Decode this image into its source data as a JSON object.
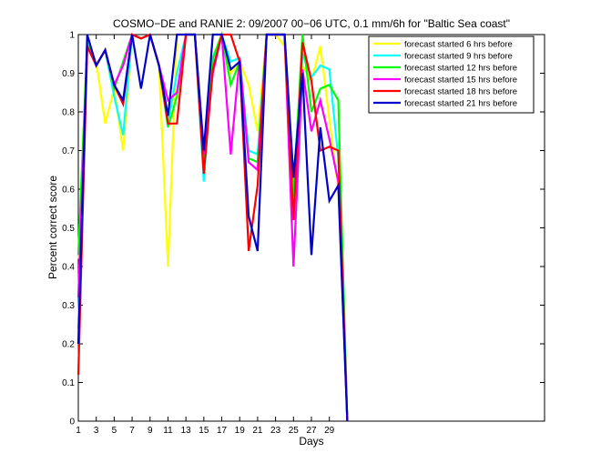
{
  "chart_data": {
    "type": "line",
    "title": "COSMO−DE and RANIE 2: 09/2007 00−06 UTC, 0.1 mm/6h for \"Baltic Sea coast\"",
    "xlabel": "Days",
    "ylabel": "Percent correct score",
    "xlim": [
      1,
      53
    ],
    "ylim": [
      0,
      1
    ],
    "xticks": [
      1,
      3,
      5,
      7,
      9,
      11,
      13,
      15,
      17,
      19,
      21,
      23,
      25,
      27,
      29
    ],
    "xtick_labels": [
      "1",
      "3",
      "5",
      "7",
      "9",
      "11",
      "13",
      "15",
      "17",
      "19",
      "21",
      "23",
      "25",
      "27",
      "29"
    ],
    "yticks": [
      0,
      0.1,
      0.2,
      0.3,
      0.4,
      0.5,
      0.6,
      0.7,
      0.8,
      0.9,
      1
    ],
    "ytick_labels": [
      "0",
      "0.1",
      "0.2",
      "0.3",
      "0.4",
      "0.5",
      "0.6",
      "0.7",
      "0.8",
      "0.9",
      "1"
    ],
    "grid": false,
    "legend_position": "top-right",
    "series": [
      {
        "name": "forecast started 6 hrs before",
        "color": "#ffff00",
        "points": [
          [
            1,
            0.42
          ],
          [
            2,
            0.97
          ],
          [
            3,
            0.93
          ],
          [
            4,
            0.77
          ],
          [
            5,
            0.86
          ],
          [
            6,
            0.7
          ],
          [
            7,
            1.0
          ],
          [
            8,
            0.99
          ],
          [
            9,
            1.0
          ],
          [
            10,
            0.92
          ],
          [
            11,
            0.4
          ],
          [
            12,
            1.0
          ],
          [
            13,
            1.0
          ],
          [
            14,
            1.0
          ],
          [
            15,
            0.67
          ],
          [
            16,
            1.0
          ],
          [
            17,
            1.0
          ],
          [
            18,
            0.9
          ],
          [
            19,
            0.93
          ],
          [
            20,
            0.87
          ],
          [
            21,
            0.75
          ],
          [
            22,
            1.0
          ],
          [
            23,
            1.0
          ],
          [
            24,
            0.97
          ],
          [
            25,
            0.52
          ],
          [
            26,
            0.92
          ],
          [
            27,
            0.88
          ],
          [
            28,
            0.97
          ],
          [
            29,
            0.78
          ],
          [
            30,
            0.6
          ],
          [
            31,
            0.0
          ]
        ]
      },
      {
        "name": "forecast started 9 hrs before",
        "color": "#00ffff",
        "points": [
          [
            1,
            0.24
          ],
          [
            2,
            0.97
          ],
          [
            3,
            0.92
          ],
          [
            4,
            0.96
          ],
          [
            5,
            0.84
          ],
          [
            6,
            0.74
          ],
          [
            7,
            1.0
          ],
          [
            8,
            0.99
          ],
          [
            9,
            1.0
          ],
          [
            10,
            0.92
          ],
          [
            11,
            0.77
          ],
          [
            12,
            0.9
          ],
          [
            13,
            1.0
          ],
          [
            14,
            1.0
          ],
          [
            15,
            0.62
          ],
          [
            16,
            0.93
          ],
          [
            17,
            1.0
          ],
          [
            18,
            0.93
          ],
          [
            19,
            0.94
          ],
          [
            20,
            0.7
          ],
          [
            21,
            0.69
          ],
          [
            22,
            1.0
          ],
          [
            23,
            1.0
          ],
          [
            24,
            1.0
          ],
          [
            25,
            0.62
          ],
          [
            26,
            0.95
          ],
          [
            27,
            0.89
          ],
          [
            28,
            0.92
          ],
          [
            29,
            0.91
          ],
          [
            30,
            0.68
          ],
          [
            31,
            0.0
          ]
        ]
      },
      {
        "name": "forecast started 12 hrs before",
        "color": "#00ff00",
        "points": [
          [
            1,
            0.43
          ],
          [
            2,
            0.98
          ],
          [
            3,
            0.92
          ],
          [
            4,
            0.96
          ],
          [
            5,
            0.86
          ],
          [
            6,
            0.93
          ],
          [
            7,
            1.0
          ],
          [
            8,
            0.99
          ],
          [
            9,
            1.0
          ],
          [
            10,
            0.92
          ],
          [
            11,
            0.76
          ],
          [
            12,
            0.84
          ],
          [
            13,
            1.0
          ],
          [
            14,
            1.0
          ],
          [
            15,
            0.68
          ],
          [
            16,
            0.94
          ],
          [
            17,
            1.0
          ],
          [
            18,
            0.87
          ],
          [
            19,
            0.93
          ],
          [
            20,
            0.68
          ],
          [
            21,
            0.67
          ],
          [
            22,
            1.0
          ],
          [
            23,
            1.0
          ],
          [
            24,
            1.0
          ],
          [
            25,
            0.58
          ],
          [
            26,
            1.0
          ],
          [
            27,
            0.8
          ],
          [
            28,
            0.86
          ],
          [
            29,
            0.87
          ],
          [
            30,
            0.83
          ],
          [
            31,
            0.0
          ]
        ]
      },
      {
        "name": "forecast started 15 hrs before",
        "color": "#ff00ff",
        "points": [
          [
            1,
            0.32
          ],
          [
            2,
            0.97
          ],
          [
            3,
            0.92
          ],
          [
            4,
            0.96
          ],
          [
            5,
            0.87
          ],
          [
            6,
            0.92
          ],
          [
            7,
            1.0
          ],
          [
            8,
            0.99
          ],
          [
            9,
            1.0
          ],
          [
            10,
            0.92
          ],
          [
            11,
            0.83
          ],
          [
            12,
            0.85
          ],
          [
            13,
            1.0
          ],
          [
            14,
            1.0
          ],
          [
            15,
            0.69
          ],
          [
            16,
            0.9
          ],
          [
            17,
            1.0
          ],
          [
            18,
            0.69
          ],
          [
            19,
            0.94
          ],
          [
            20,
            0.67
          ],
          [
            21,
            0.65
          ],
          [
            22,
            1.0
          ],
          [
            23,
            1.0
          ],
          [
            24,
            1.0
          ],
          [
            25,
            0.4
          ],
          [
            26,
            0.91
          ],
          [
            27,
            0.75
          ],
          [
            28,
            0.83
          ],
          [
            29,
            0.73
          ],
          [
            30,
            0.62
          ],
          [
            31,
            0.0
          ]
        ]
      },
      {
        "name": "forecast started 18 hrs before",
        "color": "#ff0000",
        "points": [
          [
            1,
            0.12
          ],
          [
            2,
            0.97
          ],
          [
            3,
            0.92
          ],
          [
            4,
            0.96
          ],
          [
            5,
            0.87
          ],
          [
            6,
            0.82
          ],
          [
            7,
            1.0
          ],
          [
            8,
            0.99
          ],
          [
            9,
            1.0
          ],
          [
            10,
            0.92
          ],
          [
            11,
            0.77
          ],
          [
            12,
            0.77
          ],
          [
            13,
            1.0
          ],
          [
            14,
            1.0
          ],
          [
            15,
            0.64
          ],
          [
            16,
            0.91
          ],
          [
            17,
            1.0
          ],
          [
            18,
            1.0
          ],
          [
            19,
            0.93
          ],
          [
            20,
            0.44
          ],
          [
            21,
            0.61
          ],
          [
            22,
            1.0
          ],
          [
            23,
            1.0
          ],
          [
            24,
            1.0
          ],
          [
            25,
            0.52
          ],
          [
            26,
            0.98
          ],
          [
            27,
            0.88
          ],
          [
            28,
            0.7
          ],
          [
            29,
            0.71
          ],
          [
            30,
            0.7
          ],
          [
            31,
            0.0
          ]
        ]
      },
      {
        "name": "forecast started 21 hrs before",
        "color": "#0000cc",
        "points": [
          [
            1,
            0.2
          ],
          [
            2,
            1.0
          ],
          [
            3,
            0.92
          ],
          [
            4,
            0.96
          ],
          [
            5,
            0.87
          ],
          [
            6,
            0.83
          ],
          [
            7,
            1.0
          ],
          [
            8,
            0.86
          ],
          [
            9,
            1.0
          ],
          [
            10,
            0.92
          ],
          [
            11,
            0.79
          ],
          [
            12,
            1.0
          ],
          [
            13,
            1.0
          ],
          [
            14,
            1.0
          ],
          [
            15,
            0.7
          ],
          [
            16,
            1.0
          ],
          [
            17,
            1.0
          ],
          [
            18,
            0.91
          ],
          [
            19,
            0.93
          ],
          [
            20,
            0.53
          ],
          [
            21,
            0.44
          ],
          [
            22,
            1.0
          ],
          [
            23,
            1.0
          ],
          [
            24,
            1.0
          ],
          [
            25,
            0.63
          ],
          [
            26,
            0.9
          ],
          [
            27,
            0.43
          ],
          [
            28,
            0.76
          ],
          [
            29,
            0.57
          ],
          [
            30,
            0.61
          ],
          [
            31,
            0.0
          ]
        ]
      }
    ]
  }
}
